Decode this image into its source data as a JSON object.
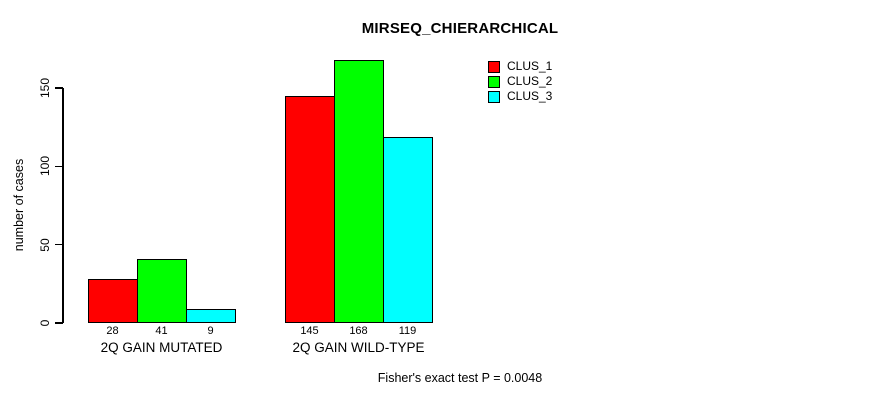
{
  "chart_data": {
    "type": "bar",
    "title": "MIRSEQ_CHIERARCHICAL",
    "ylabel": "number of cases",
    "xlabel": "",
    "categories": [
      "2Q GAIN MUTATED",
      "2Q GAIN WILD-TYPE"
    ],
    "series": [
      {
        "name": "CLUS_1",
        "color": "#ff0000",
        "values": [
          28,
          145
        ]
      },
      {
        "name": "CLUS_2",
        "color": "#00ff00",
        "values": [
          41,
          168
        ]
      },
      {
        "name": "CLUS_3",
        "color": "#00ffff",
        "values": [
          9,
          119
        ]
      }
    ],
    "yticks": [
      0,
      50,
      100,
      150
    ],
    "ylim": [
      0,
      170
    ],
    "show_bar_values": true,
    "grid": false,
    "legend_position": "top-right",
    "bar_border_color": "#000000",
    "annotation": "Fisher's exact test P = 0.0048"
  }
}
